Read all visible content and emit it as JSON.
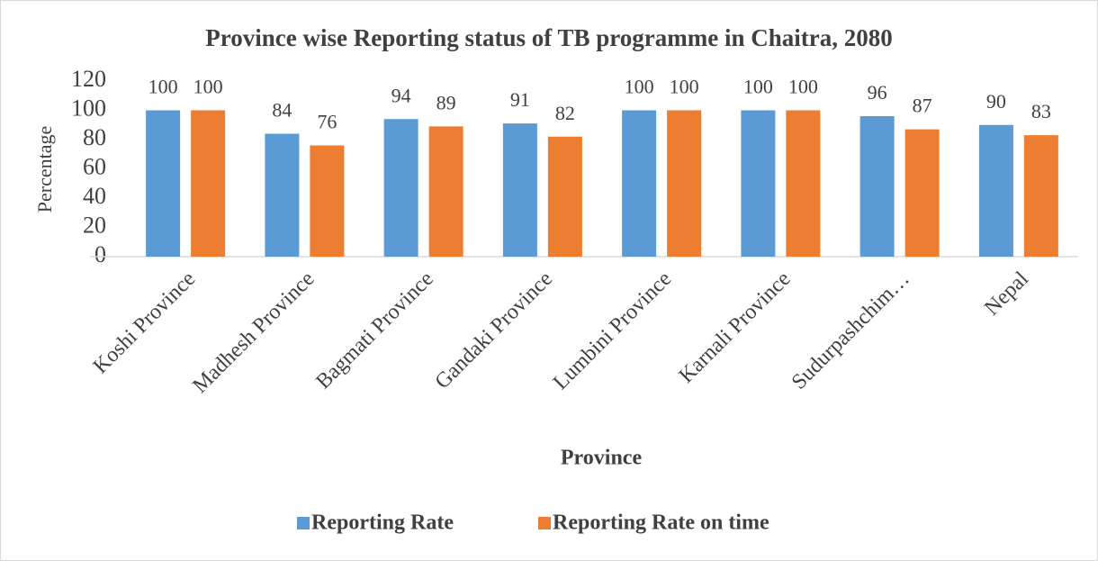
{
  "chart_data": {
    "type": "bar",
    "title": "Province wise Reporting status of TB programme in Chaitra, 2080",
    "x_label": "Province",
    "y_label": "Percentage",
    "categories": [
      "Koshi Province",
      "Madhesh Province",
      "Bagmati Province",
      "Gandaki Province",
      "Lumbini Province",
      "Karnali Province",
      "Sudurpashchim…",
      "Nepal"
    ],
    "series": [
      {
        "name": "Reporting Rate",
        "color": "#5b9bd5",
        "values": [
          100,
          84,
          94,
          91,
          100,
          100,
          96,
          90
        ]
      },
      {
        "name": "Reporting Rate on time",
        "color": "#ed7d31",
        "values": [
          100,
          76,
          89,
          82,
          100,
          100,
          87,
          83
        ]
      }
    ],
    "ylim": [
      0,
      120
    ],
    "yticks": [
      0,
      20,
      40,
      60,
      80,
      100,
      120
    ],
    "grid": false,
    "legend": "bottom"
  }
}
